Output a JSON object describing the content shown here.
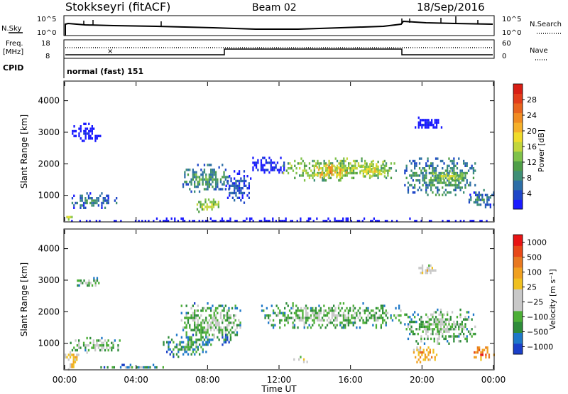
{
  "header": {
    "station": "Stokkseyri (fitACF)",
    "beam": "Beam 02",
    "date": "18/Sep/2016"
  },
  "status_panels": {
    "nsky_label": "N.Sky",
    "nsearch_label": "N.Search",
    "noise_ticks": [
      "10^5",
      "10^0"
    ],
    "freq_label": "Freq.",
    "freq_unit": "[MHz]",
    "freq_ticks": [
      "18",
      "8"
    ],
    "nave_label": "Nave",
    "nave_ticks": [
      "60",
      "0"
    ],
    "cpid_label": "CPID",
    "cpid_value": "normal (fast) 151"
  },
  "chart_data": [
    {
      "type": "heatmap",
      "name": "power",
      "ylabel": "Slant Range [km]",
      "ylim": [
        180,
        4600
      ],
      "yticks": [
        "1000",
        "2000",
        "3000",
        "4000"
      ],
      "xlim": [
        0,
        24
      ],
      "colorbar": {
        "label": "Power [dB]",
        "range": [
          0,
          32
        ],
        "tick_labels": [
          "4",
          "8",
          "12",
          "16",
          "20",
          "24",
          "28"
        ],
        "colors": [
          "#1a1aff",
          "#1e46c8",
          "#2d6ea6",
          "#3f8f76",
          "#4f9e48",
          "#7fc24a",
          "#c2d63c",
          "#f0dc2a",
          "#f5b02a",
          "#f08c22",
          "#e8641e",
          "#e23c1a",
          "#d81e14"
        ]
      },
      "echo_regions": [
        {
          "t0": 0.0,
          "t1": 0.4,
          "r0": 200,
          "r1": 500,
          "level": 6
        },
        {
          "t0": 0.3,
          "t1": 3.0,
          "r0": 600,
          "r1": 1100,
          "level": 3
        },
        {
          "t0": 0.4,
          "t1": 2.0,
          "r0": 2700,
          "r1": 3300,
          "level": 0
        },
        {
          "t0": 6.5,
          "t1": 9.2,
          "r0": 1100,
          "r1": 2000,
          "level": 4
        },
        {
          "t0": 7.2,
          "t1": 8.8,
          "r0": 500,
          "r1": 900,
          "level": 6
        },
        {
          "t0": 9.0,
          "t1": 10.4,
          "r0": 800,
          "r1": 1800,
          "level": 2
        },
        {
          "t0": 10.5,
          "t1": 12.4,
          "r0": 1700,
          "r1": 2300,
          "level": 1
        },
        {
          "t0": 12.2,
          "t1": 18.6,
          "r0": 1500,
          "r1": 2200,
          "level": 6
        },
        {
          "t0": 14.0,
          "t1": 15.8,
          "r0": 1600,
          "r1": 2000,
          "level": 9
        },
        {
          "t0": 16.5,
          "t1": 18.0,
          "r0": 1600,
          "r1": 2100,
          "level": 7
        },
        {
          "t0": 19.0,
          "t1": 23.0,
          "r0": 1000,
          "r1": 2200,
          "level": 4
        },
        {
          "t0": 20.6,
          "t1": 22.4,
          "r0": 1500,
          "r1": 1800,
          "level": 6
        },
        {
          "t0": 19.5,
          "t1": 21.2,
          "r0": 3100,
          "r1": 3500,
          "level": 0
        },
        {
          "t0": 22.6,
          "t1": 24.0,
          "r0": 600,
          "r1": 1200,
          "level": 3
        },
        {
          "t0": 0.0,
          "t1": 24.0,
          "r0": 200,
          "r1": 300,
          "level": 0
        }
      ]
    },
    {
      "type": "heatmap",
      "name": "velocity",
      "ylabel": "Slant Range [km]",
      "ylim": [
        180,
        4600
      ],
      "yticks": [
        "1000",
        "2000",
        "3000",
        "4000"
      ],
      "xlim": [
        0,
        24
      ],
      "xlabel": "Time UT",
      "xticks": [
        "00:00",
        "04:00",
        "08:00",
        "12:00",
        "16:00",
        "20:00",
        "00:00"
      ],
      "colorbar": {
        "label": "Velocity [m s⁻¹]",
        "tick_labels": [
          "1000",
          "500",
          "100",
          "25",
          "−25",
          "−100",
          "−500",
          "−1000"
        ],
        "colors": [
          "#1a3fc8",
          "#1e78c8",
          "#2e8c3a",
          "#4caf36",
          "#c8c8c8",
          "#c8c8c8",
          "#f0c020",
          "#f0a020",
          "#e87820",
          "#e84818",
          "#e81414"
        ]
      },
      "echo_regions": [
        {
          "t0": 0.0,
          "t1": 0.8,
          "r0": 200,
          "r1": 900,
          "level": 7
        },
        {
          "t0": 0.3,
          "t1": 3.2,
          "r0": 700,
          "r1": 1200,
          "level": 4
        },
        {
          "t0": 0.5,
          "t1": 2.0,
          "r0": 2800,
          "r1": 3100,
          "level": 4
        },
        {
          "t0": 2.0,
          "t1": 5.5,
          "r0": 200,
          "r1": 350,
          "level": 3
        },
        {
          "t0": 5.5,
          "t1": 8.2,
          "r0": 600,
          "r1": 1300,
          "level": 3
        },
        {
          "t0": 6.5,
          "t1": 9.8,
          "r0": 1100,
          "r1": 2300,
          "level": 4
        },
        {
          "t0": 8.7,
          "t1": 9.3,
          "r0": 900,
          "r1": 1300,
          "level": 2
        },
        {
          "t0": 11.0,
          "t1": 18.8,
          "r0": 1500,
          "r1": 2300,
          "level": 4
        },
        {
          "t0": 19.0,
          "t1": 23.0,
          "r0": 1000,
          "r1": 2100,
          "level": 4
        },
        {
          "t0": 19.5,
          "t1": 20.8,
          "r0": 400,
          "r1": 900,
          "level": 8
        },
        {
          "t0": 22.8,
          "t1": 24.0,
          "r0": 500,
          "r1": 900,
          "level": 9
        },
        {
          "t0": 19.8,
          "t1": 20.8,
          "r0": 3200,
          "r1": 3500,
          "level": 6
        },
        {
          "t0": 12.8,
          "t1": 13.8,
          "r0": 400,
          "r1": 600,
          "level": 6
        }
      ]
    }
  ]
}
